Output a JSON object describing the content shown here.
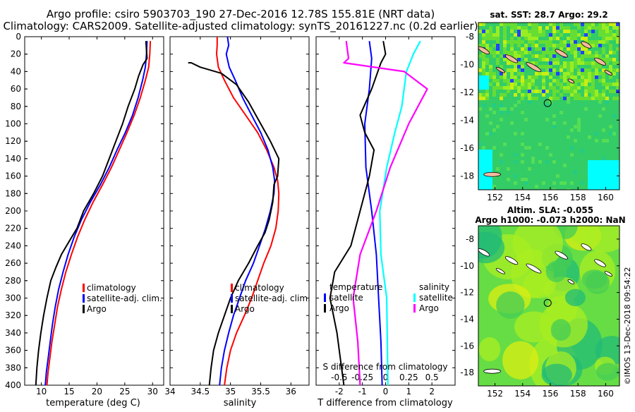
{
  "header": {
    "line1": "Argo profile: csiro 5903703_190 27-Dec-2016 12.78S 155.81E (NRT data)",
    "line2": "Climatology: CARS2009. Satellite-adjusted climatology: synTS_20161227.nc (0.2d earlier)"
  },
  "chart_data": [
    {
      "id": "temperature",
      "type": "line",
      "xlabel": "temperature (deg C)",
      "ylabel": "",
      "xlim": [
        7,
        32
      ],
      "ylim": [
        0,
        400
      ],
      "y_inverted": true,
      "xticks": [
        10,
        15,
        20,
        25,
        30
      ],
      "yticks": [
        0,
        20,
        40,
        60,
        80,
        100,
        120,
        140,
        160,
        180,
        200,
        220,
        240,
        260,
        280,
        300,
        320,
        340,
        360,
        380,
        400
      ],
      "legend": [
        "climatology",
        "satellite-adj. clim.",
        "Argo"
      ],
      "series": [
        {
          "name": "climatology",
          "color": "#ff0000",
          "points": [
            [
              29.6,
              5
            ],
            [
              29.5,
              20
            ],
            [
              29.3,
              35
            ],
            [
              28.7,
              50
            ],
            [
              27.8,
              70
            ],
            [
              26.7,
              90
            ],
            [
              25.4,
              110
            ],
            [
              24,
              130
            ],
            [
              22.6,
              150
            ],
            [
              21,
              170
            ],
            [
              19.3,
              190
            ],
            [
              17.8,
              210
            ],
            [
              16.5,
              230
            ],
            [
              15.4,
              250
            ],
            [
              14.4,
              270
            ],
            [
              13.6,
              290
            ],
            [
              12.9,
              310
            ],
            [
              12.4,
              330
            ],
            [
              11.9,
              350
            ],
            [
              11.5,
              370
            ],
            [
              11.2,
              385
            ],
            [
              11,
              400
            ]
          ]
        },
        {
          "name": "satellite-adj. clim.",
          "color": "#0000ff",
          "points": [
            [
              29,
              5
            ],
            [
              28.9,
              20
            ],
            [
              28.7,
              35
            ],
            [
              28.2,
              50
            ],
            [
              27.4,
              70
            ],
            [
              26.4,
              90
            ],
            [
              25.1,
              110
            ],
            [
              23.6,
              130
            ],
            [
              22.2,
              150
            ],
            [
              20.6,
              170
            ],
            [
              18.8,
              190
            ],
            [
              17.2,
              210
            ],
            [
              15.9,
              230
            ],
            [
              14.8,
              250
            ],
            [
              13.9,
              270
            ],
            [
              13.1,
              290
            ],
            [
              12.5,
              310
            ],
            [
              12,
              330
            ],
            [
              11.6,
              350
            ],
            [
              11.2,
              370
            ],
            [
              10.9,
              385
            ],
            [
              10.7,
              400
            ]
          ]
        },
        {
          "name": "Argo",
          "color": "#000000",
          "points": [
            [
              28.8,
              5
            ],
            [
              28.9,
              15
            ],
            [
              29,
              25
            ],
            [
              28.3,
              32
            ],
            [
              27.5,
              45
            ],
            [
              26.8,
              60
            ],
            [
              25.6,
              80
            ],
            [
              24.6,
              100
            ],
            [
              23.4,
              120
            ],
            [
              22.2,
              140
            ],
            [
              21,
              160
            ],
            [
              19.4,
              180
            ],
            [
              17.6,
              200
            ],
            [
              16.4,
              220
            ],
            [
              15,
              235
            ],
            [
              13.6,
              250
            ],
            [
              12.6,
              265
            ],
            [
              11.7,
              280
            ],
            [
              11,
              300
            ],
            [
              10.4,
              320
            ],
            [
              9.9,
              340
            ],
            [
              9.5,
              360
            ],
            [
              9.2,
              380
            ],
            [
              9,
              400
            ]
          ]
        }
      ]
    },
    {
      "id": "salinity",
      "type": "line",
      "xlabel": "salinity",
      "ylabel": "",
      "xlim": [
        34,
        36.3
      ],
      "ylim": [
        0,
        400
      ],
      "y_inverted": true,
      "xticks": [
        34,
        34.5,
        35,
        35.5,
        36
      ],
      "legend": [
        "climatology",
        "satellite-adj. clim.",
        "Argo"
      ],
      "series": [
        {
          "name": "climatology",
          "color": "#ff0000",
          "points": [
            [
              34.78,
              0
            ],
            [
              34.78,
              10
            ],
            [
              34.77,
              20
            ],
            [
              34.8,
              35
            ],
            [
              34.9,
              50
            ],
            [
              35.05,
              70
            ],
            [
              35.25,
              90
            ],
            [
              35.45,
              110
            ],
            [
              35.6,
              130
            ],
            [
              35.72,
              150
            ],
            [
              35.78,
              165
            ],
            [
              35.8,
              180
            ],
            [
              35.79,
              200
            ],
            [
              35.75,
              220
            ],
            [
              35.67,
              240
            ],
            [
              35.55,
              260
            ],
            [
              35.45,
              280
            ],
            [
              35.35,
              300
            ],
            [
              35.23,
              320
            ],
            [
              35.1,
              340
            ],
            [
              35.0,
              360
            ],
            [
              34.94,
              380
            ],
            [
              34.9,
              400
            ]
          ]
        },
        {
          "name": "satellite-adj. clim.",
          "color": "#0000ff",
          "points": [
            [
              34.95,
              0
            ],
            [
              34.97,
              10
            ],
            [
              34.93,
              20
            ],
            [
              34.98,
              35
            ],
            [
              35.08,
              50
            ],
            [
              35.2,
              70
            ],
            [
              35.35,
              90
            ],
            [
              35.5,
              110
            ],
            [
              35.62,
              130
            ],
            [
              35.7,
              150
            ],
            [
              35.73,
              165
            ],
            [
              35.72,
              180
            ],
            [
              35.66,
              200
            ],
            [
              35.58,
              220
            ],
            [
              35.48,
              240
            ],
            [
              35.38,
              260
            ],
            [
              35.25,
              280
            ],
            [
              35.15,
              300
            ],
            [
              35.05,
              320
            ],
            [
              34.97,
              340
            ],
            [
              34.9,
              360
            ],
            [
              34.85,
              380
            ],
            [
              34.82,
              400
            ]
          ]
        },
        {
          "name": "Argo",
          "color": "#000000",
          "points": [
            [
              34.3,
              30
            ],
            [
              34.35,
              30
            ],
            [
              34.5,
              35
            ],
            [
              34.85,
              42
            ],
            [
              35.1,
              55
            ],
            [
              35.3,
              75
            ],
            [
              35.5,
              100
            ],
            [
              35.66,
              120
            ],
            [
              35.8,
              140
            ],
            [
              35.78,
              160
            ],
            [
              35.72,
              170
            ],
            [
              35.7,
              190
            ],
            [
              35.64,
              210
            ],
            [
              35.57,
              225
            ],
            [
              35.45,
              240
            ],
            [
              35.3,
              260
            ],
            [
              35.13,
              280
            ],
            [
              35.0,
              300
            ],
            [
              34.9,
              320
            ],
            [
              34.8,
              340
            ],
            [
              34.72,
              360
            ],
            [
              34.68,
              380
            ],
            [
              34.65,
              400
            ]
          ]
        }
      ]
    },
    {
      "id": "difference",
      "type": "line",
      "xlabel": "T difference from climatology",
      "xlabel_top": "S difference from climatology",
      "ylabel": "",
      "xlim": [
        -3,
        3
      ],
      "x2lim": [
        -0.75,
        0.75
      ],
      "ylim": [
        0,
        400
      ],
      "y_inverted": true,
      "xticks": [
        -2,
        -1,
        0,
        1,
        2
      ],
      "x2ticks": [
        -0.5,
        -0.25,
        0,
        0.25,
        0.5
      ],
      "legend_left_title": "temperature",
      "legend_right_title": "salinity",
      "legend": [
        "satellite",
        "Argo",
        "satellite",
        "Argo"
      ],
      "series": [
        {
          "name": "temperature satellite",
          "color": "#0000ff",
          "points": [
            [
              -0.7,
              5
            ],
            [
              -0.6,
              25
            ],
            [
              -0.7,
              60
            ],
            [
              -0.9,
              100
            ],
            [
              -0.85,
              150
            ],
            [
              -0.6,
              200
            ],
            [
              -0.4,
              250
            ],
            [
              -0.3,
              300
            ],
            [
              -0.2,
              350
            ],
            [
              -0.15,
              400
            ]
          ]
        },
        {
          "name": "temperature Argo",
          "color": "#000000",
          "points": [
            [
              -0.1,
              5
            ],
            [
              0,
              20
            ],
            [
              -0.2,
              30
            ],
            [
              -0.6,
              60
            ],
            [
              -1.1,
              90
            ],
            [
              -0.9,
              110
            ],
            [
              -0.5,
              130
            ],
            [
              -0.7,
              160
            ],
            [
              -1.1,
              200
            ],
            [
              -1.5,
              240
            ],
            [
              -2.2,
              270
            ],
            [
              -2.4,
              300
            ],
            [
              -2.1,
              340
            ],
            [
              -1.9,
              380
            ],
            [
              -1.8,
              400
            ]
          ]
        },
        {
          "name": "salinity satellite",
          "color": "#00ffff",
          "points": [
            [
              1.5,
              5
            ],
            [
              1.2,
              20
            ],
            [
              0.9,
              40
            ],
            [
              0.7,
              80
            ],
            [
              0.4,
              110
            ],
            [
              0.05,
              150
            ],
            [
              -0.25,
              200
            ],
            [
              -0.2,
              250
            ],
            [
              0.05,
              300
            ],
            [
              0.1,
              400
            ]
          ]
        },
        {
          "name": "salinity Argo",
          "color": "#ff00ff",
          "points": [
            [
              -1.7,
              5
            ],
            [
              -1.6,
              25
            ],
            [
              -1.8,
              30
            ],
            [
              0.8,
              40
            ],
            [
              1.8,
              60
            ],
            [
              1.0,
              100
            ],
            [
              0.2,
              150
            ],
            [
              -0.4,
              200
            ],
            [
              -1.1,
              250
            ],
            [
              -1.4,
              300
            ],
            [
              -1.2,
              350
            ],
            [
              -1.1,
              400
            ]
          ]
        }
      ]
    },
    {
      "id": "sst_map",
      "type": "heatmap",
      "title": "sat. SST: 28.7  Argo: 29.2",
      "xticks": [
        152,
        154,
        156,
        158,
        160
      ],
      "yticks": [
        -8,
        -10,
        -12,
        -14,
        -16,
        -18
      ],
      "xlim": [
        150.8,
        161
      ],
      "ylim": [
        -19,
        -7
      ],
      "marker": [
        155.81,
        -12.78
      ]
    },
    {
      "id": "sla_map",
      "type": "heatmap",
      "title": "Altim. SLA: -0.055",
      "subtitle": "Argo h1000: -0.073 h2000: NaN",
      "xticks": [
        152,
        154,
        156,
        158,
        160
      ],
      "yticks": [
        -8,
        -10,
        -12,
        -14,
        -16,
        -18
      ],
      "xlim": [
        150.8,
        161
      ],
      "ylim": [
        -19,
        -7
      ],
      "marker": [
        155.81,
        -12.78
      ]
    }
  ],
  "footer": {
    "credit": "©IMOS 13-Dec-2018 09:54:22"
  }
}
